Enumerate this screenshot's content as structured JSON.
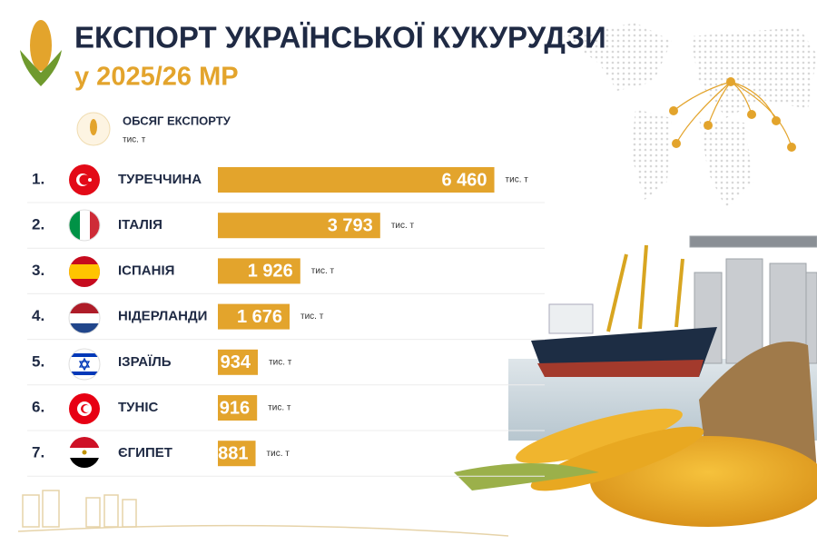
{
  "chart_data": {
    "type": "bar",
    "orientation": "horizontal",
    "title": "ЕКСПОРТ УКРАЇНСЬКОЇ КУКУРУДЗИ",
    "subtitle": "у 2025/26 МР",
    "unit": "тис. т",
    "ranks": [
      "1.",
      "2.",
      "3.",
      "4.",
      "5.",
      "6.",
      "7."
    ],
    "categories": [
      "ТУРЕЧЧИНА",
      "ІТАЛІЯ",
      "ІСПАНІЯ",
      "НІДЕРЛАНДИ",
      "ІЗРАЇЛЬ",
      "ТУНІС",
      "ЄГИПЕТ"
    ],
    "series": [
      {
        "name": "ОБСЯГ ЕКСПОРТУ",
        "color": "#e3a42c",
        "values": [
          6460,
          3793,
          1926,
          1676,
          934,
          916,
          881
        ],
        "value_labels": [
          "6 460",
          "3 793",
          "1 926",
          "1 676",
          "934",
          "916",
          "881"
        ]
      }
    ],
    "xlim": [
      0,
      7000
    ]
  }
}
